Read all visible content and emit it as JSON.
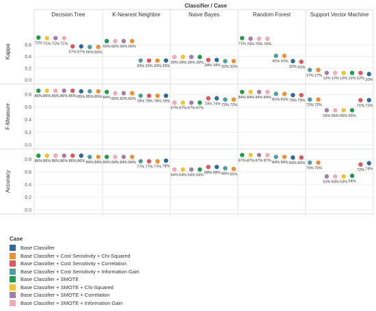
{
  "chart_data": {
    "type": "scatter",
    "title": "Classifier / Case",
    "panels": [
      "Decision Tree",
      "K-Nearest Neighbor",
      "Naive Bayes",
      "Random Forest",
      "Support Vector Machine"
    ],
    "grid": true,
    "legend": {
      "title": "Case",
      "placement": "bottom-left",
      "items": [
        {
          "label": "Base Classifier",
          "color": "#2c6aa0"
        },
        {
          "label": "Base Classifier + Cost Sensitivity + Chi-Squared",
          "color": "#f28e2b"
        },
        {
          "label": "Base Classifier + Cost Sensitivity + Correlation",
          "color": "#e15759"
        },
        {
          "label": "Base Classifier + Cost Sensitivity + Information Gain",
          "color": "#4e9f9c"
        },
        {
          "label": "Base Classifier + SMOTE",
          "color": "#1f9e4a"
        },
        {
          "label": "Base Classifier + SMOTE + Chi-Squared",
          "color": "#f1c232"
        },
        {
          "label": "Base Classifier + SMOTE + Correlation",
          "color": "#a67ca8"
        },
        {
          "label": "Base Classifier + SMOTE + Information Gain",
          "color": "#f4a8b8"
        }
      ]
    },
    "rows": [
      {
        "ylabel": "Kappa",
        "ylim": [
          0,
          0.8
        ],
        "yticks": [
          "0.0",
          "0.2",
          "0.4",
          "0.6"
        ],
        "panels": [
          [
            {
              "case": 4,
              "value": 0.72,
              "label": "72%"
            },
            {
              "case": 5,
              "value": 0.71,
              "label": "71%"
            },
            {
              "case": 6,
              "value": 0.71,
              "label": "71%"
            },
            {
              "case": 7,
              "value": 0.71,
              "label": "71%"
            },
            {
              "case": 2,
              "value": 0.57,
              "label": "57%"
            },
            {
              "case": 0,
              "value": 0.57,
              "label": "57%"
            },
            {
              "case": 3,
              "value": 0.56,
              "label": "56%"
            },
            {
              "case": 1,
              "value": 0.56,
              "label": "56%"
            }
          ],
          [
            {
              "case": 4,
              "value": 0.66,
              "label": "66%"
            },
            {
              "case": 7,
              "value": 0.66,
              "label": "66%"
            },
            {
              "case": 6,
              "value": 0.66,
              "label": "66%"
            },
            {
              "case": 1,
              "value": 0.66,
              "label": "66%"
            },
            {
              "case": 3,
              "value": 0.33,
              "label": "33%"
            },
            {
              "case": 2,
              "value": 0.33,
              "label": "33%"
            },
            {
              "case": 1,
              "value": 0.33,
              "label": "33%"
            },
            {
              "case": 0,
              "value": 0.33,
              "label": "33%"
            }
          ],
          [
            {
              "case": 7,
              "value": 0.39,
              "label": "39%"
            },
            {
              "case": 5,
              "value": 0.39,
              "label": "39%"
            },
            {
              "case": 6,
              "value": 0.39,
              "label": "39%"
            },
            {
              "case": 4,
              "value": 0.39,
              "label": "39%"
            },
            {
              "case": 2,
              "value": 0.34,
              "label": "34%"
            },
            {
              "case": 0,
              "value": 0.34,
              "label": "34%"
            },
            {
              "case": 3,
              "value": 0.32,
              "label": "32%"
            },
            {
              "case": 1,
              "value": 0.32,
              "label": "32%"
            }
          ],
          [
            {
              "case": 4,
              "value": 0.71,
              "label": "71%"
            },
            {
              "case": 6,
              "value": 0.7,
              "label": "70%"
            },
            {
              "case": 7,
              "value": 0.7,
              "label": "70%"
            },
            {
              "case": 7,
              "value": 0.7,
              "label": "70%"
            },
            {
              "case": 3,
              "value": 0.41,
              "label": "41%"
            },
            {
              "case": 1,
              "value": 0.41,
              "label": "41%"
            },
            {
              "case": 0,
              "value": 0.32,
              "label": "32%"
            },
            {
              "case": 2,
              "value": 0.31,
              "label": "31%"
            }
          ],
          [
            {
              "case": 3,
              "value": 0.17,
              "label": "17%"
            },
            {
              "case": 1,
              "value": 0.17,
              "label": "17%"
            },
            {
              "case": 6,
              "value": 0.12,
              "label": "12%"
            },
            {
              "case": 7,
              "value": 0.12,
              "label": "12%"
            },
            {
              "case": 5,
              "value": 0.12,
              "label": "12%"
            },
            {
              "case": 4,
              "value": 0.12,
              "label": "12%"
            },
            {
              "case": 2,
              "value": 0.12,
              "label": "12%"
            },
            {
              "case": 0,
              "value": 0.1,
              "label": "10%"
            }
          ]
        ]
      },
      {
        "ylabel": "F-Measure",
        "ylim": [
          0,
          0.9
        ],
        "yticks": [
          "0.0",
          "0.2",
          "0.4",
          "0.6",
          "0.8"
        ],
        "panels": [
          [
            {
              "case": 4,
              "value": 0.86,
              "label": "86%"
            },
            {
              "case": 5,
              "value": 0.86,
              "label": "86%"
            },
            {
              "case": 7,
              "value": 0.86,
              "label": "86%"
            },
            {
              "case": 6,
              "value": 0.86,
              "label": "86%"
            },
            {
              "case": 2,
              "value": 0.86,
              "label": "86%"
            },
            {
              "case": 0,
              "value": 0.85,
              "label": "85%"
            },
            {
              "case": 3,
              "value": 0.85,
              "label": "85%"
            },
            {
              "case": 1,
              "value": 0.85,
              "label": "85%"
            }
          ],
          [
            {
              "case": 4,
              "value": 0.84,
              "label": "84%"
            },
            {
              "case": 7,
              "value": 0.82,
              "label": "82%"
            },
            {
              "case": 6,
              "value": 0.82,
              "label": "82%"
            },
            {
              "case": 1,
              "value": 0.82,
              "label": "82%"
            },
            {
              "case": 3,
              "value": 0.78,
              "label": "78%"
            },
            {
              "case": 2,
              "value": 0.78,
              "label": "78%"
            },
            {
              "case": 1,
              "value": 0.78,
              "label": "78%"
            },
            {
              "case": 0,
              "value": 0.78,
              "label": "78%"
            }
          ],
          [
            {
              "case": 7,
              "value": 0.67,
              "label": "67%"
            },
            {
              "case": 5,
              "value": 0.67,
              "label": "67%"
            },
            {
              "case": 6,
              "value": 0.67,
              "label": "67%"
            },
            {
              "case": 4,
              "value": 0.67,
              "label": "67%"
            },
            {
              "case": 2,
              "value": 0.74,
              "label": "74%"
            },
            {
              "case": 0,
              "value": 0.74,
              "label": "74%"
            },
            {
              "case": 3,
              "value": 0.72,
              "label": "72%"
            },
            {
              "case": 1,
              "value": 0.72,
              "label": "72%"
            }
          ],
          [
            {
              "case": 4,
              "value": 0.84,
              "label": "84%"
            },
            {
              "case": 5,
              "value": 0.84,
              "label": "84%"
            },
            {
              "case": 6,
              "value": 0.84,
              "label": "84%"
            },
            {
              "case": 7,
              "value": 0.84,
              "label": "84%"
            },
            {
              "case": 3,
              "value": 0.81,
              "label": "81%"
            },
            {
              "case": 1,
              "value": 0.81,
              "label": "81%"
            },
            {
              "case": 0,
              "value": 0.79,
              "label": "79%"
            },
            {
              "case": 2,
              "value": 0.79,
              "label": "79%"
            }
          ],
          [
            {
              "case": 3,
              "value": 0.72,
              "label": "72%"
            },
            {
              "case": 1,
              "value": 0.72,
              "label": "72%"
            },
            {
              "case": 6,
              "value": 0.55,
              "label": "55%"
            },
            {
              "case": 7,
              "value": 0.55,
              "label": "55%"
            },
            {
              "case": 5,
              "value": 0.55,
              "label": "55%"
            },
            {
              "case": 4,
              "value": 0.55,
              "label": "55%"
            },
            {
              "case": 2,
              "value": 0.71,
              "label": "71%"
            },
            {
              "case": 0,
              "value": 0.71,
              "label": "71%"
            }
          ]
        ]
      },
      {
        "ylabel": "Accuracy",
        "ylim": [
          0,
          0.9
        ],
        "yticks": [
          "0.0",
          "0.2",
          "0.4",
          "0.6",
          "0.8"
        ],
        "panels": [
          [
            {
              "case": 4,
              "value": 0.86,
              "label": "86%"
            },
            {
              "case": 5,
              "value": 0.86,
              "label": "86%"
            },
            {
              "case": 7,
              "value": 0.86,
              "label": "86%"
            },
            {
              "case": 6,
              "value": 0.86,
              "label": "86%"
            },
            {
              "case": 2,
              "value": 0.86,
              "label": "86%"
            },
            {
              "case": 0,
              "value": 0.86,
              "label": "86%"
            },
            {
              "case": 3,
              "value": 0.84,
              "label": "84%"
            },
            {
              "case": 1,
              "value": 0.84,
              "label": "84%"
            }
          ],
          [
            {
              "case": 4,
              "value": 0.84,
              "label": "84%"
            },
            {
              "case": 7,
              "value": 0.84,
              "label": "84%"
            },
            {
              "case": 6,
              "value": 0.84,
              "label": "84%"
            },
            {
              "case": 1,
              "value": 0.84,
              "label": "84%"
            },
            {
              "case": 3,
              "value": 0.77,
              "label": "77%"
            },
            {
              "case": 2,
              "value": 0.77,
              "label": "77%"
            },
            {
              "case": 1,
              "value": 0.77,
              "label": "77%"
            },
            {
              "case": 0,
              "value": 0.78,
              "label": "78%"
            }
          ],
          [
            {
              "case": 7,
              "value": 0.64,
              "label": "64%"
            },
            {
              "case": 5,
              "value": 0.64,
              "label": "64%"
            },
            {
              "case": 6,
              "value": 0.64,
              "label": "64%"
            },
            {
              "case": 4,
              "value": 0.64,
              "label": "64%"
            },
            {
              "case": 2,
              "value": 0.68,
              "label": "68%"
            },
            {
              "case": 0,
              "value": 0.68,
              "label": "68%"
            },
            {
              "case": 3,
              "value": 0.66,
              "label": "66%"
            },
            {
              "case": 1,
              "value": 0.65,
              "label": "65%"
            }
          ],
          [
            {
              "case": 4,
              "value": 0.87,
              "label": "87%"
            },
            {
              "case": 5,
              "value": 0.87,
              "label": "87%"
            },
            {
              "case": 6,
              "value": 0.87,
              "label": "87%"
            },
            {
              "case": 7,
              "value": 0.87,
              "label": "87%"
            },
            {
              "case": 3,
              "value": 0.84,
              "label": "84%"
            },
            {
              "case": 1,
              "value": 0.84,
              "label": "84%"
            },
            {
              "case": 0,
              "value": 0.83,
              "label": "83%"
            },
            {
              "case": 2,
              "value": 0.83,
              "label": "83%"
            }
          ],
          [
            {
              "case": 3,
              "value": 0.75,
              "label": "75%"
            },
            {
              "case": 1,
              "value": 0.75,
              "label": "75%"
            },
            {
              "case": 6,
              "value": 0.53,
              "label": "53%"
            },
            {
              "case": 7,
              "value": 0.53,
              "label": "53%"
            },
            {
              "case": 5,
              "value": 0.53,
              "label": "53%"
            },
            {
              "case": 4,
              "value": 0.54,
              "label": "54%"
            },
            {
              "case": 2,
              "value": 0.72,
              "label": "72%"
            },
            {
              "case": 0,
              "value": 0.74,
              "label": "74%"
            }
          ]
        ]
      }
    ]
  }
}
